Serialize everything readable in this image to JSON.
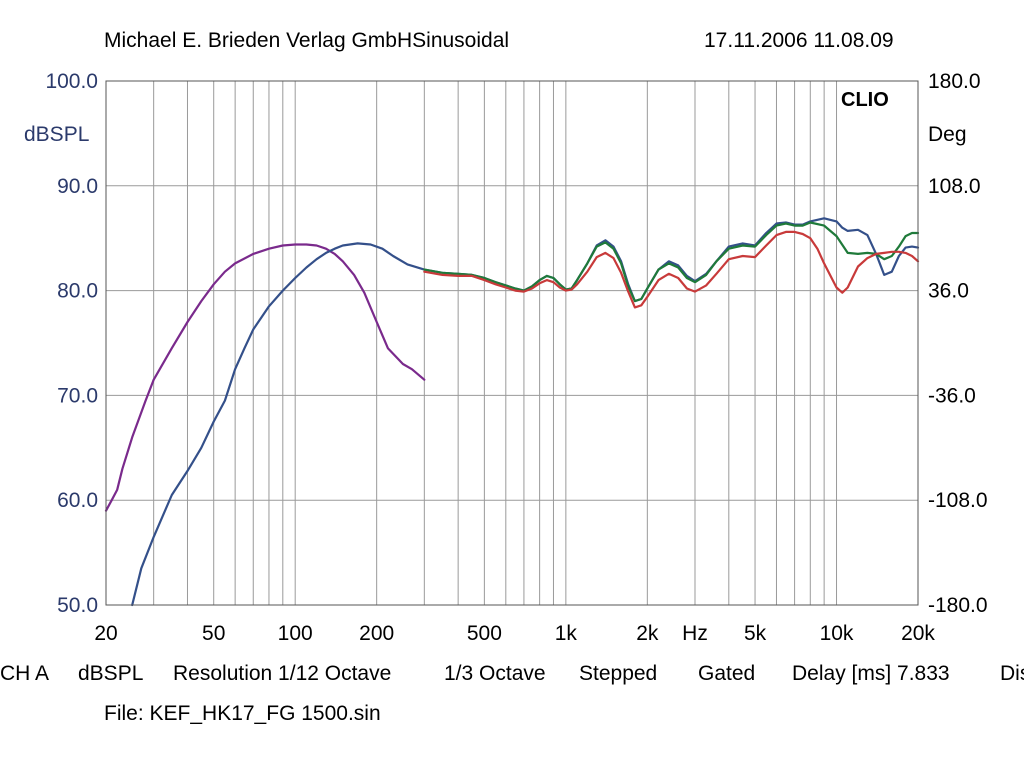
{
  "header": {
    "left": "Michael E. Brieden Verlag GmbHSinusoidal",
    "right": "17.11.2006 11.08.09"
  },
  "badge": "CLIO",
  "footer": {
    "channel": "CH A",
    "unit": "dBSPL",
    "resolution": "Resolution 1/12 Octave",
    "smoothing": "1/3 Octave",
    "mode": "Stepped",
    "gating": "Gated",
    "delay": "Delay [ms] 7.833",
    "cut": "Dis",
    "file": "File: KEF_HK17_FG 1500.sin"
  },
  "colors": {
    "background": "#ffffff",
    "grid": "#9a9a9a",
    "axis_text": "#2b3a6b",
    "purple": "#7a2a8c",
    "blue": "#34508a",
    "green": "#1f7a3a",
    "red": "#c83a3a"
  },
  "chart_data": {
    "type": "line",
    "title": "",
    "xlabel": "Hz",
    "ylabel": "dBSPL",
    "y2label": "Deg",
    "xscale": "log",
    "xlim": [
      20,
      20000
    ],
    "ylim": [
      50,
      100
    ],
    "y2lim": [
      -180,
      180
    ],
    "grid": true,
    "x_ticks": [
      {
        "value": 20,
        "label": "20"
      },
      {
        "value": 50,
        "label": "50"
      },
      {
        "value": 100,
        "label": "100"
      },
      {
        "value": 200,
        "label": "200"
      },
      {
        "value": 500,
        "label": "500"
      },
      {
        "value": 1000,
        "label": "1k"
      },
      {
        "value": 2000,
        "label": "2k"
      },
      {
        "value": 5000,
        "label": "5k"
      },
      {
        "value": 10000,
        "label": "10k"
      },
      {
        "value": 20000,
        "label": "20k"
      }
    ],
    "y_ticks": [
      {
        "value": 100,
        "label": "100.0"
      },
      {
        "value": 90,
        "label": "90.0"
      },
      {
        "value": 80,
        "label": "80.0"
      },
      {
        "value": 70,
        "label": "70.0"
      },
      {
        "value": 60,
        "label": "60.0"
      },
      {
        "value": 50,
        "label": "50.0"
      }
    ],
    "y2_ticks": [
      {
        "value": 180,
        "label": "180.0"
      },
      {
        "value": 108,
        "label": "108.0"
      },
      {
        "value": 36,
        "label": "36.0"
      },
      {
        "value": -36,
        "label": "-36.0"
      },
      {
        "value": -108,
        "label": "-108.0"
      },
      {
        "value": -180,
        "label": "-180.0"
      }
    ],
    "series": [
      {
        "color": "#7a2a8c",
        "points": [
          [
            20,
            59
          ],
          [
            21,
            60
          ],
          [
            22,
            61
          ],
          [
            23,
            63
          ],
          [
            25,
            66
          ],
          [
            28,
            69.5
          ],
          [
            30,
            71.5
          ],
          [
            35,
            74.5
          ],
          [
            40,
            77
          ],
          [
            45,
            79
          ],
          [
            50,
            80.6
          ],
          [
            55,
            81.8
          ],
          [
            60,
            82.6
          ],
          [
            70,
            83.5
          ],
          [
            80,
            84
          ],
          [
            90,
            84.3
          ],
          [
            100,
            84.4
          ],
          [
            110,
            84.4
          ],
          [
            120,
            84.3
          ],
          [
            130,
            84
          ],
          [
            140,
            83.5
          ],
          [
            150,
            82.8
          ],
          [
            165,
            81.5
          ],
          [
            180,
            79.8
          ],
          [
            200,
            77
          ],
          [
            220,
            74.5
          ],
          [
            250,
            73
          ],
          [
            270,
            72.5
          ],
          [
            300,
            71.5
          ]
        ]
      },
      {
        "color": "#34508a",
        "points": [
          [
            25,
            50
          ],
          [
            27,
            53.5
          ],
          [
            30,
            56.5
          ],
          [
            35,
            60.5
          ],
          [
            40,
            62.8
          ],
          [
            45,
            65
          ],
          [
            50,
            67.5
          ],
          [
            55,
            69.5
          ],
          [
            60,
            72.5
          ],
          [
            65,
            74.5
          ],
          [
            70,
            76.3
          ],
          [
            80,
            78.5
          ],
          [
            90,
            80
          ],
          [
            100,
            81.2
          ],
          [
            110,
            82.2
          ],
          [
            120,
            83
          ],
          [
            130,
            83.6
          ],
          [
            140,
            84
          ],
          [
            150,
            84.3
          ],
          [
            170,
            84.5
          ],
          [
            190,
            84.4
          ],
          [
            210,
            84
          ],
          [
            230,
            83.3
          ],
          [
            260,
            82.5
          ],
          [
            300,
            82
          ],
          [
            350,
            81.7
          ],
          [
            400,
            81.6
          ],
          [
            450,
            81.5
          ],
          [
            500,
            81.2
          ],
          [
            550,
            80.8
          ],
          [
            600,
            80.5
          ],
          [
            650,
            80.2
          ],
          [
            700,
            80
          ],
          [
            750,
            80.4
          ],
          [
            800,
            81
          ],
          [
            850,
            81.4
          ],
          [
            900,
            81.2
          ],
          [
            950,
            80.6
          ],
          [
            1000,
            80.1
          ],
          [
            1050,
            80.2
          ],
          [
            1100,
            81
          ],
          [
            1200,
            82.6
          ],
          [
            1300,
            84.3
          ],
          [
            1400,
            84.8
          ],
          [
            1500,
            84.2
          ],
          [
            1600,
            82.8
          ],
          [
            1700,
            80.6
          ],
          [
            1800,
            79
          ],
          [
            1900,
            79.2
          ],
          [
            2000,
            80.2
          ],
          [
            2200,
            82
          ],
          [
            2400,
            82.8
          ],
          [
            2600,
            82.4
          ],
          [
            2800,
            81.4
          ],
          [
            3000,
            80.9
          ],
          [
            3300,
            81.6
          ],
          [
            3600,
            82.8
          ],
          [
            4000,
            84.2
          ],
          [
            4500,
            84.5
          ],
          [
            5000,
            84.3
          ],
          [
            5500,
            85.5
          ],
          [
            6000,
            86.4
          ],
          [
            6500,
            86.5
          ],
          [
            7000,
            86.3
          ],
          [
            7500,
            86.3
          ],
          [
            8000,
            86.6
          ],
          [
            9000,
            86.9
          ],
          [
            10000,
            86.6
          ],
          [
            10500,
            86
          ],
          [
            11000,
            85.7
          ],
          [
            12000,
            85.8
          ],
          [
            13000,
            85.3
          ],
          [
            14000,
            83.5
          ],
          [
            15000,
            81.5
          ],
          [
            16000,
            81.8
          ],
          [
            17000,
            83.3
          ],
          [
            18000,
            84.1
          ],
          [
            19000,
            84.2
          ],
          [
            20000,
            84.1
          ]
        ]
      },
      {
        "color": "#1f7a3a",
        "points": [
          [
            300,
            82
          ],
          [
            350,
            81.7
          ],
          [
            400,
            81.6
          ],
          [
            450,
            81.5
          ],
          [
            500,
            81.2
          ],
          [
            550,
            80.8
          ],
          [
            600,
            80.5
          ],
          [
            650,
            80.2
          ],
          [
            700,
            80
          ],
          [
            750,
            80.4
          ],
          [
            800,
            81
          ],
          [
            850,
            81.4
          ],
          [
            900,
            81.2
          ],
          [
            950,
            80.6
          ],
          [
            1000,
            80.1
          ],
          [
            1050,
            80.2
          ],
          [
            1100,
            81
          ],
          [
            1200,
            82.6
          ],
          [
            1300,
            84.2
          ],
          [
            1400,
            84.6
          ],
          [
            1500,
            84
          ],
          [
            1600,
            82.6
          ],
          [
            1700,
            80.4
          ],
          [
            1800,
            79
          ],
          [
            1900,
            79.2
          ],
          [
            2000,
            80.2
          ],
          [
            2200,
            82
          ],
          [
            2400,
            82.6
          ],
          [
            2600,
            82.2
          ],
          [
            2800,
            81.2
          ],
          [
            3000,
            80.8
          ],
          [
            3300,
            81.5
          ],
          [
            3600,
            82.8
          ],
          [
            4000,
            84
          ],
          [
            4500,
            84.3
          ],
          [
            5000,
            84.2
          ],
          [
            5500,
            85.3
          ],
          [
            6000,
            86.2
          ],
          [
            6500,
            86.4
          ],
          [
            7000,
            86.2
          ],
          [
            7500,
            86.2
          ],
          [
            8000,
            86.5
          ],
          [
            9000,
            86.2
          ],
          [
            10000,
            85.2
          ],
          [
            11000,
            83.6
          ],
          [
            12000,
            83.5
          ],
          [
            13000,
            83.6
          ],
          [
            14000,
            83.5
          ],
          [
            15000,
            83
          ],
          [
            16000,
            83.3
          ],
          [
            17000,
            84.2
          ],
          [
            18000,
            85.2
          ],
          [
            19000,
            85.5
          ],
          [
            20000,
            85.5
          ]
        ]
      },
      {
        "color": "#c83a3a",
        "points": [
          [
            300,
            81.8
          ],
          [
            350,
            81.5
          ],
          [
            400,
            81.4
          ],
          [
            450,
            81.4
          ],
          [
            500,
            81
          ],
          [
            550,
            80.6
          ],
          [
            600,
            80.3
          ],
          [
            650,
            80
          ],
          [
            700,
            79.9
          ],
          [
            750,
            80.2
          ],
          [
            800,
            80.7
          ],
          [
            850,
            81
          ],
          [
            900,
            80.8
          ],
          [
            950,
            80.3
          ],
          [
            1000,
            80
          ],
          [
            1050,
            80.1
          ],
          [
            1100,
            80.6
          ],
          [
            1200,
            81.8
          ],
          [
            1300,
            83.2
          ],
          [
            1400,
            83.6
          ],
          [
            1500,
            83.1
          ],
          [
            1600,
            81.7
          ],
          [
            1700,
            79.9
          ],
          [
            1800,
            78.4
          ],
          [
            1900,
            78.6
          ],
          [
            2000,
            79.4
          ],
          [
            2200,
            81
          ],
          [
            2400,
            81.6
          ],
          [
            2600,
            81.2
          ],
          [
            2800,
            80.2
          ],
          [
            3000,
            79.9
          ],
          [
            3300,
            80.5
          ],
          [
            3600,
            81.6
          ],
          [
            4000,
            83
          ],
          [
            4500,
            83.3
          ],
          [
            5000,
            83.2
          ],
          [
            5500,
            84.3
          ],
          [
            6000,
            85.3
          ],
          [
            6500,
            85.6
          ],
          [
            7000,
            85.6
          ],
          [
            7500,
            85.4
          ],
          [
            8000,
            85
          ],
          [
            8500,
            84
          ],
          [
            9000,
            82.6
          ],
          [
            10000,
            80.3
          ],
          [
            10500,
            79.8
          ],
          [
            11000,
            80.3
          ],
          [
            12000,
            82.3
          ],
          [
            13000,
            83.1
          ],
          [
            14000,
            83.5
          ],
          [
            15000,
            83.6
          ],
          [
            16000,
            83.7
          ],
          [
            17000,
            83.7
          ],
          [
            18000,
            83.6
          ],
          [
            19000,
            83.3
          ],
          [
            20000,
            82.8
          ]
        ]
      }
    ]
  }
}
